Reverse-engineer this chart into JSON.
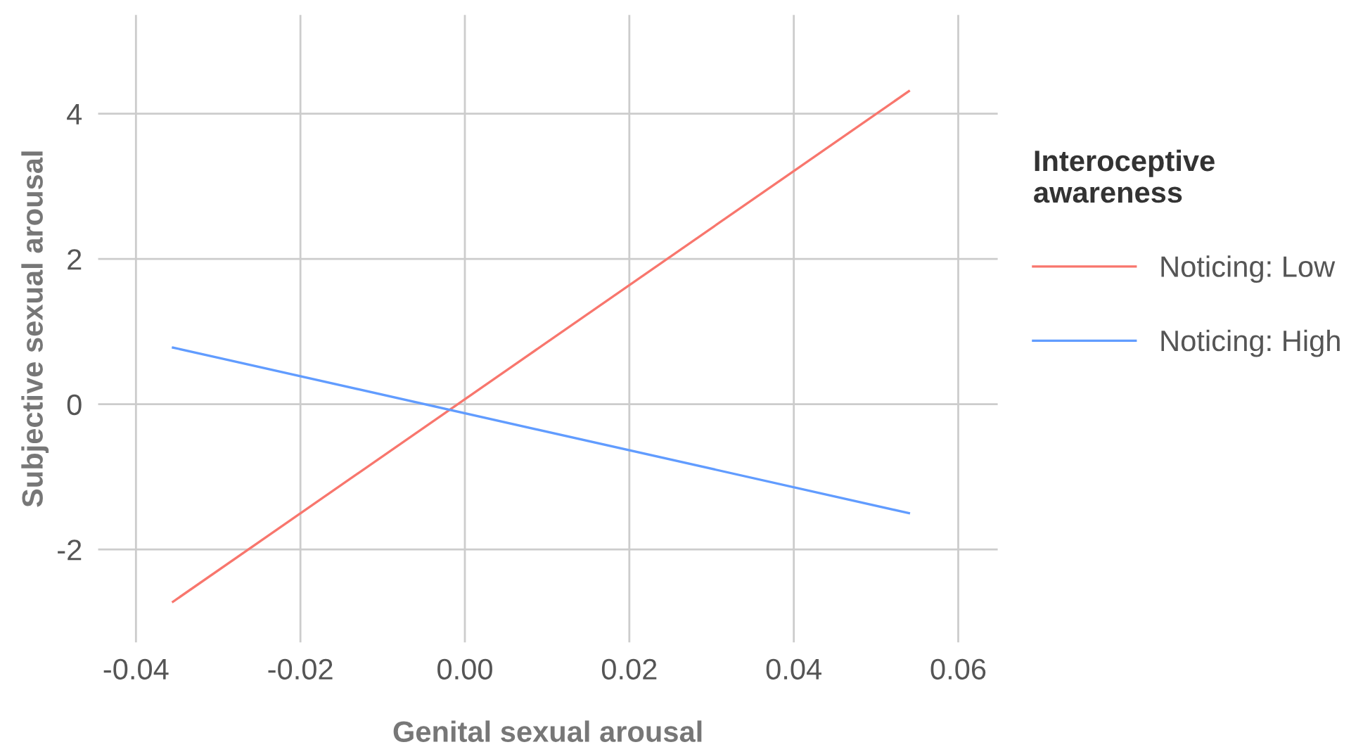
{
  "chart_data": {
    "type": "line",
    "xlabel": "Genital sexual arousal",
    "ylabel": "Subjective sexual arousal",
    "legend_title": "Interoceptive\nawareness",
    "x": [
      -0.0355,
      0.054
    ],
    "series": [
      {
        "name": "Noticing: Low",
        "color": "#f8766d",
        "values": [
          -2.72,
          4.31
        ]
      },
      {
        "name": "Noticing: High",
        "color": "#619cff",
        "values": [
          0.78,
          -1.5
        ]
      }
    ],
    "xlim": [
      -0.0446,
      0.0648
    ],
    "ylim": [
      -3.28,
      5.36
    ],
    "xticks": [
      {
        "value": -0.04,
        "label": "-0.04"
      },
      {
        "value": -0.02,
        "label": "-0.02"
      },
      {
        "value": 0,
        "label": "0.00"
      },
      {
        "value": 0.02,
        "label": "0.02"
      },
      {
        "value": 0.04,
        "label": "0.04"
      },
      {
        "value": 0.06,
        "label": "0.06"
      }
    ],
    "yticks": [
      -2,
      0,
      2,
      4
    ],
    "grid": true,
    "legend": "right",
    "marker": "none",
    "line_style": "solid"
  }
}
